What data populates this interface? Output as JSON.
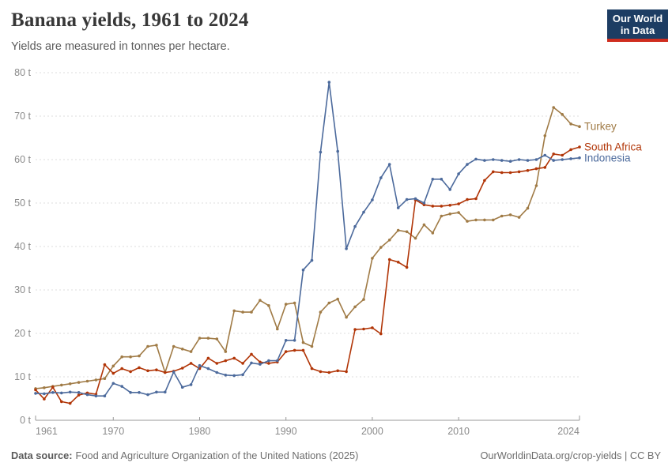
{
  "header": {
    "title": "Banana yields, 1961 to 2024",
    "subtitle": "Yields are measured in tonnes per hectare.",
    "logo": {
      "line1": "Our World",
      "line2": "in Data"
    }
  },
  "footer": {
    "source_label": "Data source:",
    "source_text": "Food and Agriculture Organization of the United Nations (2025)",
    "credit": "OurWorldinData.org/crop-yields | CC BY"
  },
  "colors": {
    "turkey": "#a07b46",
    "south_africa": "#b13507",
    "indonesia": "#4c6a9c",
    "gridline": "#dcdcdc",
    "axis": "#999999",
    "tick_label": "#8a8a8a",
    "logo_bg": "#1d3d63",
    "logo_stripe": "#cf2d1f"
  },
  "chart_data": {
    "type": "line",
    "title": "Banana yields, 1961 to 2024",
    "ylabel": "tonnes per hectare",
    "xlabel": "",
    "xlim": [
      1961,
      2024
    ],
    "ylim": [
      0,
      80
    ],
    "grid": "dashed-horizontal",
    "legend_position": "right-end-of-lines",
    "ytick_values": [
      0,
      10,
      20,
      30,
      40,
      50,
      60,
      70,
      80
    ],
    "ytick_labels": [
      "0 t",
      "10 t",
      "20 t",
      "30 t",
      "40 t",
      "50 t",
      "60 t",
      "70 t",
      "80 t"
    ],
    "xtick_values": [
      1961,
      1970,
      1980,
      1990,
      2000,
      2010,
      2024
    ],
    "x": [
      1961,
      1962,
      1963,
      1964,
      1965,
      1966,
      1967,
      1968,
      1969,
      1970,
      1971,
      1972,
      1973,
      1974,
      1975,
      1976,
      1977,
      1978,
      1979,
      1980,
      1981,
      1982,
      1983,
      1984,
      1985,
      1986,
      1987,
      1988,
      1989,
      1990,
      1991,
      1992,
      1993,
      1994,
      1995,
      1996,
      1997,
      1998,
      1999,
      2000,
      2001,
      2002,
      2003,
      2004,
      2005,
      2006,
      2007,
      2008,
      2009,
      2010,
      2011,
      2012,
      2013,
      2014,
      2015,
      2016,
      2017,
      2018,
      2019,
      2020,
      2021,
      2022,
      2023,
      2024
    ],
    "series": [
      {
        "name": "Turkey",
        "color": "#a07b46",
        "values": [
          7.3,
          7.5,
          7.8,
          8.1,
          8.4,
          8.7,
          9.0,
          9.3,
          9.6,
          12.5,
          14.6,
          14.6,
          14.8,
          17.0,
          17.3,
          11.0,
          17.0,
          16.4,
          15.8,
          18.9,
          18.9,
          18.7,
          15.8,
          25.2,
          24.9,
          24.9,
          27.6,
          26.4,
          21.0,
          26.7,
          27.0,
          17.9,
          17.0,
          24.9,
          27.0,
          27.9,
          23.7,
          26.1,
          27.8,
          37.3,
          39.8,
          41.5,
          43.7,
          43.4,
          41.9,
          45.0,
          43.1,
          47.0,
          47.5,
          47.8,
          45.8,
          46.1,
          46.1,
          46.1,
          47.0,
          47.3,
          46.7,
          48.8,
          54.0,
          65.5,
          72.0,
          70.4,
          68.2,
          67.6
        ]
      },
      {
        "name": "South Africa",
        "color": "#b13507",
        "values": [
          7.0,
          4.9,
          7.6,
          4.3,
          3.9,
          5.8,
          6.3,
          6.0,
          12.8,
          10.8,
          11.9,
          11.2,
          12.1,
          11.4,
          11.6,
          11.0,
          11.3,
          12.0,
          13.1,
          11.9,
          14.3,
          13.1,
          13.7,
          14.3,
          13.1,
          15.2,
          13.4,
          13.1,
          13.4,
          15.8,
          16.1,
          16.1,
          11.9,
          11.2,
          11.0,
          11.4,
          11.2,
          20.9,
          21.0,
          21.3,
          19.9,
          37.0,
          36.4,
          35.2,
          50.7,
          49.6,
          49.3,
          49.3,
          49.5,
          49.8,
          50.8,
          51.0,
          55.2,
          57.2,
          57.0,
          57.0,
          57.2,
          57.5,
          57.9,
          58.2,
          61.3,
          61.0,
          62.3,
          62.9
        ]
      },
      {
        "name": "Indonesia",
        "color": "#4c6a9c",
        "values": [
          6.2,
          6.1,
          6.4,
          6.3,
          6.5,
          6.4,
          5.9,
          5.6,
          5.6,
          8.5,
          7.8,
          6.4,
          6.4,
          5.9,
          6.5,
          6.5,
          11.1,
          7.6,
          8.2,
          12.6,
          11.9,
          11.0,
          10.4,
          10.3,
          10.5,
          13.2,
          12.9,
          13.7,
          13.7,
          18.4,
          18.4,
          34.6,
          36.8,
          61.7,
          77.8,
          61.9,
          39.5,
          44.6,
          47.9,
          50.7,
          55.8,
          58.9,
          48.9,
          50.8,
          51.0,
          50.0,
          55.5,
          55.5,
          53.1,
          56.7,
          58.9,
          60.1,
          59.8,
          60.0,
          59.8,
          59.6,
          60.0,
          59.8,
          60.0,
          61.0,
          59.8,
          60.0,
          60.2,
          60.4
        ]
      }
    ]
  }
}
